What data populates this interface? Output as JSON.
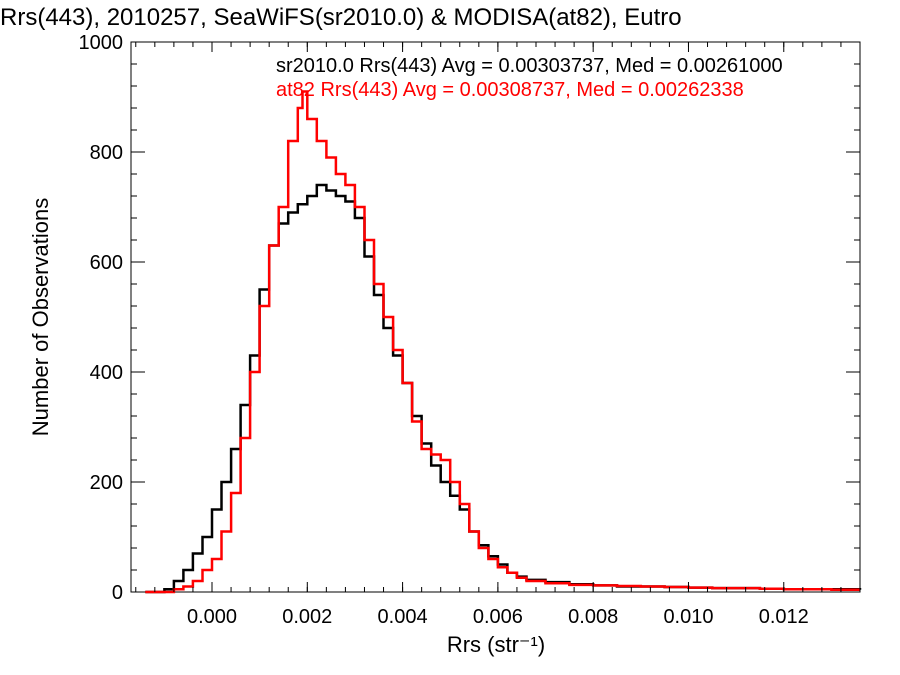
{
  "chart_data": {
    "type": "line",
    "title": "Rrs(443), 2010257, SeaWiFS(sr2010.0) & MODISA(at82), Eutro",
    "xlabel": "Rrs (str⁻¹)",
    "ylabel": "Number of Observations",
    "xlim": [
      -0.0017,
      0.0136
    ],
    "ylim": [
      0,
      1000
    ],
    "xticks": [
      0.0,
      0.002,
      0.004,
      0.006,
      0.008,
      0.01,
      0.012
    ],
    "xtick_labels": [
      "0.000",
      "0.002",
      "0.004",
      "0.006",
      "0.008",
      "0.010",
      "0.012"
    ],
    "yticks": [
      0,
      200,
      400,
      600,
      800,
      1000
    ],
    "ytick_labels": [
      "0",
      "200",
      "400",
      "600",
      "800",
      "1000"
    ],
    "grid": false,
    "legend_position": "top-right",
    "annotations": [
      {
        "text": "sr2010.0 Rrs(443) Avg = 0.00303737, Med = 0.00261000",
        "color": "#000000"
      },
      {
        "text": "at82 Rrs(443) Avg = 0.00308737, Med = 0.00262338",
        "color": "#ff0000"
      }
    ],
    "series": [
      {
        "name": "sr2010.0",
        "color": "#000000",
        "x": [
          -0.0014,
          -0.001,
          -0.0008,
          -0.0006,
          -0.0004,
          -0.0002,
          0.0,
          0.0002,
          0.0004,
          0.0006,
          0.0008,
          0.001,
          0.0012,
          0.0014,
          0.0016,
          0.0018,
          0.002,
          0.0022,
          0.0024,
          0.0026,
          0.0028,
          0.003,
          0.0032,
          0.0034,
          0.0036,
          0.0038,
          0.004,
          0.0042,
          0.0044,
          0.0046,
          0.0048,
          0.005,
          0.0052,
          0.0054,
          0.0056,
          0.0058,
          0.006,
          0.0062,
          0.0064,
          0.0066,
          0.007,
          0.0075,
          0.008,
          0.0085,
          0.009,
          0.0095,
          0.01,
          0.0105,
          0.011,
          0.0115,
          0.012,
          0.0125,
          0.013,
          0.0136
        ],
        "y": [
          0,
          5,
          20,
          40,
          70,
          100,
          150,
          200,
          260,
          340,
          430,
          550,
          630,
          670,
          690,
          705,
          720,
          740,
          730,
          720,
          710,
          680,
          610,
          540,
          480,
          430,
          380,
          320,
          270,
          230,
          200,
          175,
          150,
          110,
          85,
          65,
          50,
          35,
          28,
          22,
          18,
          14,
          12,
          10,
          10,
          9,
          8,
          7,
          7,
          6,
          5,
          5,
          5,
          4
        ]
      },
      {
        "name": "at82",
        "color": "#ff0000",
        "x": [
          -0.0014,
          -0.001,
          -0.0008,
          -0.0006,
          -0.0004,
          -0.0002,
          0.0,
          0.0002,
          0.0004,
          0.0006,
          0.0008,
          0.001,
          0.0012,
          0.0014,
          0.0016,
          0.0018,
          0.0019,
          0.002,
          0.0022,
          0.0024,
          0.0026,
          0.0028,
          0.003,
          0.0032,
          0.0034,
          0.0036,
          0.0038,
          0.004,
          0.0042,
          0.0044,
          0.0046,
          0.0048,
          0.005,
          0.0052,
          0.0054,
          0.0056,
          0.0058,
          0.006,
          0.0062,
          0.0064,
          0.0066,
          0.007,
          0.0075,
          0.008,
          0.0085,
          0.009,
          0.0095,
          0.01,
          0.0105,
          0.011,
          0.0115,
          0.012,
          0.0125,
          0.013,
          0.0136
        ],
        "y": [
          0,
          0,
          5,
          10,
          20,
          40,
          60,
          110,
          180,
          280,
          400,
          520,
          630,
          700,
          820,
          880,
          910,
          860,
          820,
          790,
          760,
          740,
          700,
          640,
          560,
          500,
          440,
          380,
          310,
          260,
          250,
          240,
          200,
          160,
          110,
          80,
          60,
          45,
          35,
          26,
          20,
          16,
          13,
          12,
          11,
          10,
          9,
          8,
          7,
          7,
          6,
          5,
          5,
          4,
          4
        ]
      }
    ]
  }
}
